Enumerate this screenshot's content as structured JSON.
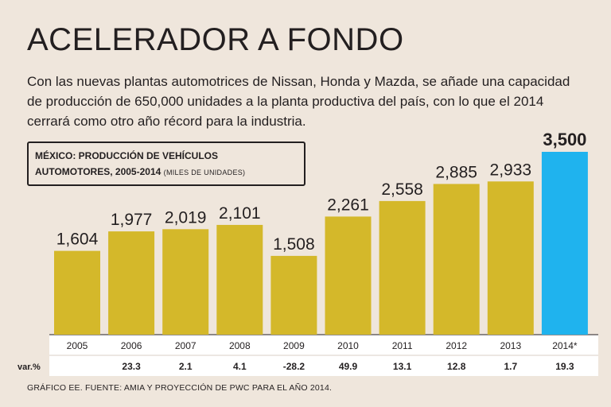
{
  "header": {
    "title": "ACELERADOR A FONDO",
    "subtitle": "Con las nuevas plantas automotrices de Nissan, Honda y Mazda, se añade una capacidad de producción de 650,000 unidades a la planta productiva del país, con lo que el 2014 cerrará como otro año récord para la industria."
  },
  "chart_box": {
    "title_line1": "MÉXICO: PRODUCCIÓN DE VEHÍCULOS",
    "title_line2": "AUTOMOTORES, 2005-2014",
    "unit": "(MILES DE UNIDADES)"
  },
  "footer": {
    "source": "GRÁFICO EE. FUENTE: AMIA Y PROYECCIÓN DE PWC PARA EL AÑO 2014."
  },
  "colors": {
    "bar": "#d4b82a",
    "bar_highlight": "#1fb3ee",
    "text": "#231f20",
    "background": "#efe6dc",
    "table_band": "#ffffff"
  },
  "chart_data": {
    "type": "bar",
    "title": "MÉXICO: PRODUCCIÓN DE VEHÍCULOS AUTOMOTORES, 2005-2014",
    "ylabel": "MILES DE UNIDADES",
    "ylim": [
      0,
      3500
    ],
    "categories": [
      "2005",
      "2006",
      "2007",
      "2008",
      "2009",
      "2010",
      "2011",
      "2012",
      "2013",
      "2014*"
    ],
    "values": [
      1604,
      1977,
      2019,
      2101,
      1508,
      2261,
      2558,
      2885,
      2933,
      3500
    ],
    "value_labels": [
      "1,604",
      "1,977",
      "2,019",
      "2,101",
      "1,508",
      "2,261",
      "2,558",
      "2,885",
      "2,933",
      "3,500"
    ],
    "highlight_index": 9,
    "variation_label": "var.%",
    "variation": [
      "",
      "23.3",
      "2.1",
      "4.1",
      "-28.2",
      "49.9",
      "13.1",
      "12.8",
      "1.7",
      "19.3"
    ]
  }
}
